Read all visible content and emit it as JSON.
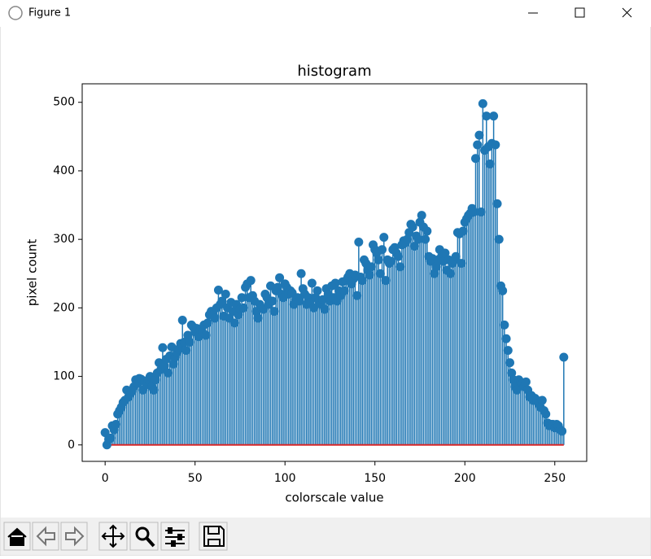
{
  "window": {
    "title": "Figure 1"
  },
  "chart_data": {
    "type": "stem",
    "title": "histogram",
    "x_label": "colorscale value",
    "y_label": "pixel count",
    "color": "#1f77b4",
    "baseline_color": "#d62728",
    "x": [
      0,
      1,
      2,
      3,
      4,
      5,
      6,
      7,
      8,
      9,
      10,
      11,
      12,
      13,
      14,
      15,
      16,
      17,
      18,
      19,
      20,
      21,
      22,
      23,
      24,
      25,
      26,
      27,
      28,
      29,
      30,
      31,
      32,
      33,
      34,
      35,
      36,
      37,
      38,
      39,
      40,
      41,
      42,
      43,
      44,
      45,
      46,
      47,
      48,
      49,
      50,
      51,
      52,
      53,
      54,
      55,
      56,
      57,
      58,
      59,
      60,
      61,
      62,
      63,
      64,
      65,
      66,
      67,
      68,
      69,
      70,
      71,
      72,
      73,
      74,
      75,
      76,
      77,
      78,
      79,
      80,
      81,
      82,
      83,
      84,
      85,
      86,
      87,
      88,
      89,
      90,
      91,
      92,
      93,
      94,
      95,
      96,
      97,
      98,
      99,
      100,
      101,
      102,
      103,
      104,
      105,
      106,
      107,
      108,
      109,
      110,
      111,
      112,
      113,
      114,
      115,
      116,
      117,
      118,
      119,
      120,
      121,
      122,
      123,
      124,
      125,
      126,
      127,
      128,
      129,
      130,
      131,
      132,
      133,
      134,
      135,
      136,
      137,
      138,
      139,
      140,
      141,
      142,
      143,
      144,
      145,
      146,
      147,
      148,
      149,
      150,
      151,
      152,
      153,
      154,
      155,
      156,
      157,
      158,
      159,
      160,
      161,
      162,
      163,
      164,
      165,
      166,
      167,
      168,
      169,
      170,
      171,
      172,
      173,
      174,
      175,
      176,
      177,
      178,
      179,
      180,
      181,
      182,
      183,
      184,
      185,
      186,
      187,
      188,
      189,
      190,
      191,
      192,
      193,
      194,
      195,
      196,
      197,
      198,
      199,
      200,
      201,
      202,
      203,
      204,
      205,
      206,
      207,
      208,
      209,
      210,
      211,
      212,
      213,
      214,
      215,
      216,
      217,
      218,
      219,
      220,
      221,
      222,
      223,
      224,
      225,
      226,
      227,
      228,
      229,
      230,
      231,
      232,
      233,
      234,
      235,
      236,
      237,
      238,
      239,
      240,
      241,
      242,
      243,
      244,
      245,
      246,
      247,
      248,
      249,
      250,
      251,
      252,
      253,
      254,
      255
    ],
    "values": [
      18,
      0,
      8,
      10,
      28,
      22,
      30,
      45,
      50,
      55,
      62,
      65,
      80,
      70,
      75,
      78,
      85,
      95,
      90,
      97,
      96,
      80,
      92,
      88,
      95,
      100,
      85,
      80,
      95,
      105,
      120,
      110,
      142,
      115,
      125,
      105,
      130,
      143,
      118,
      128,
      135,
      140,
      148,
      182,
      150,
      138,
      160,
      150,
      175,
      172,
      165,
      170,
      158,
      168,
      165,
      175,
      160,
      178,
      190,
      195,
      190,
      185,
      200,
      226,
      205,
      210,
      188,
      220,
      200,
      185,
      208,
      195,
      178,
      205,
      190,
      198,
      215,
      200,
      230,
      235,
      215,
      240,
      218,
      210,
      195,
      185,
      205,
      200,
      198,
      220,
      215,
      205,
      232,
      210,
      195,
      225,
      230,
      244,
      220,
      215,
      235,
      230,
      220,
      225,
      222,
      205,
      212,
      215,
      210,
      250,
      228,
      220,
      205,
      215,
      208,
      236,
      200,
      215,
      225,
      210,
      205,
      212,
      198,
      228,
      220,
      210,
      232,
      215,
      236,
      210,
      225,
      218,
      238,
      225,
      240,
      245,
      250,
      235,
      242,
      248,
      218,
      296,
      245,
      240,
      270,
      265,
      255,
      248,
      260,
      292,
      285,
      280,
      270,
      250,
      285,
      303,
      240,
      270,
      265,
      268,
      285,
      288,
      280,
      275,
      260,
      292,
      298,
      295,
      300,
      310,
      322,
      318,
      290,
      305,
      300,
      325,
      335,
      318,
      300,
      312,
      275,
      268,
      272,
      250,
      260,
      270,
      285,
      275,
      268,
      280,
      255,
      270,
      250,
      265,
      270,
      275,
      310,
      308,
      265,
      312,
      325,
      330,
      335,
      338,
      345,
      340,
      418,
      438,
      452,
      340,
      498,
      430,
      480,
      435,
      410,
      440,
      480,
      438,
      352,
      300,
      232,
      225,
      175,
      155,
      138,
      120,
      105,
      95,
      85,
      80,
      95,
      92,
      90,
      85,
      92,
      80,
      70,
      72,
      65,
      68,
      65,
      60,
      55,
      65,
      50,
      45,
      32,
      28,
      30,
      30,
      25,
      30,
      28,
      22,
      20,
      128
    ],
    "xlim": [
      -12.75,
      267.75
    ],
    "xticks": [
      0,
      50,
      100,
      150,
      200,
      250
    ],
    "ylim": [
      -24,
      527
    ],
    "yticks": [
      0,
      100,
      200,
      300,
      400,
      500
    ]
  }
}
